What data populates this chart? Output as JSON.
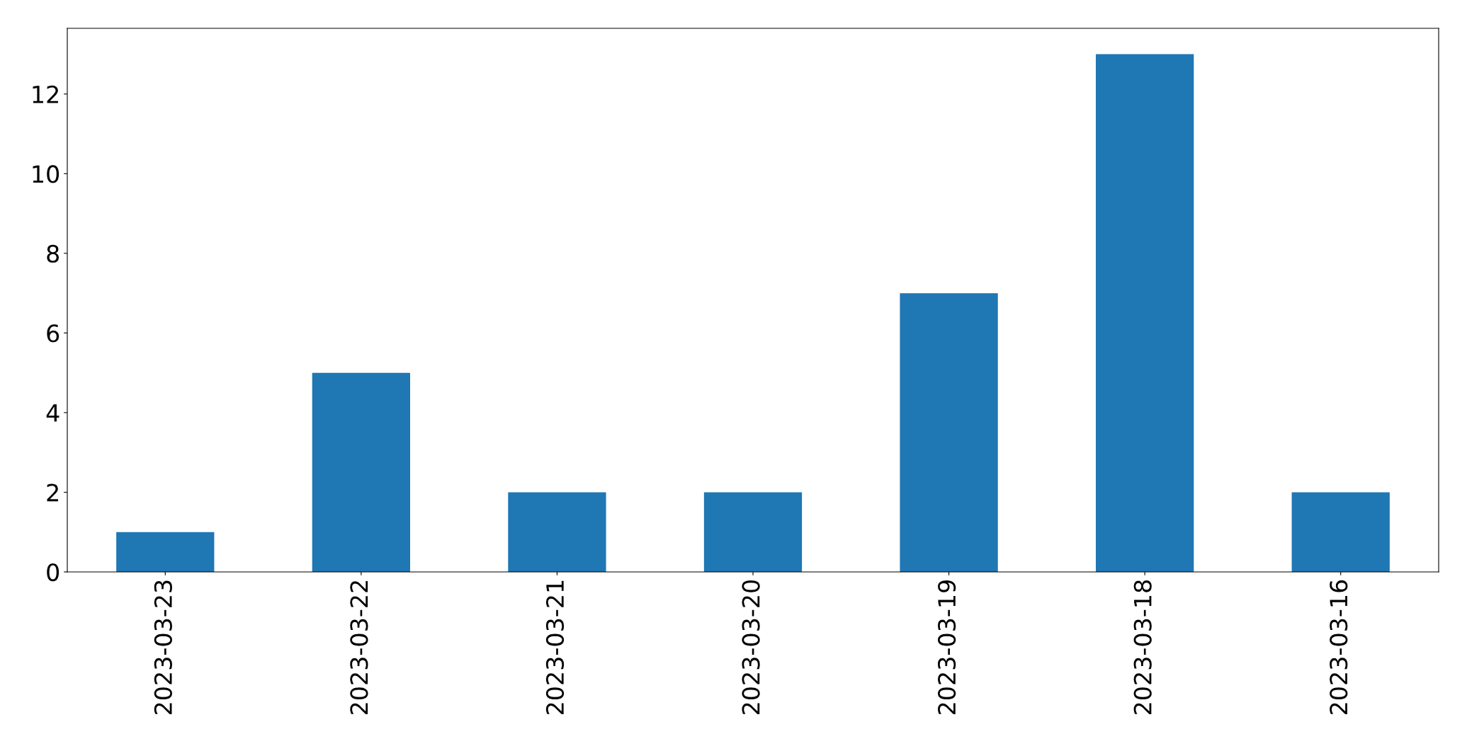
{
  "chart_data": {
    "type": "bar",
    "categories": [
      "2023-03-23",
      "2023-03-22",
      "2023-03-21",
      "2023-03-20",
      "2023-03-19",
      "2023-03-18",
      "2023-03-16"
    ],
    "values": [
      1,
      5,
      2,
      2,
      7,
      13,
      2
    ],
    "color": "#1f77b4",
    "ylim": [
      0,
      13.65
    ],
    "yticks": [
      0,
      2,
      4,
      6,
      8,
      10,
      12
    ],
    "grid": false,
    "legend": false
  }
}
